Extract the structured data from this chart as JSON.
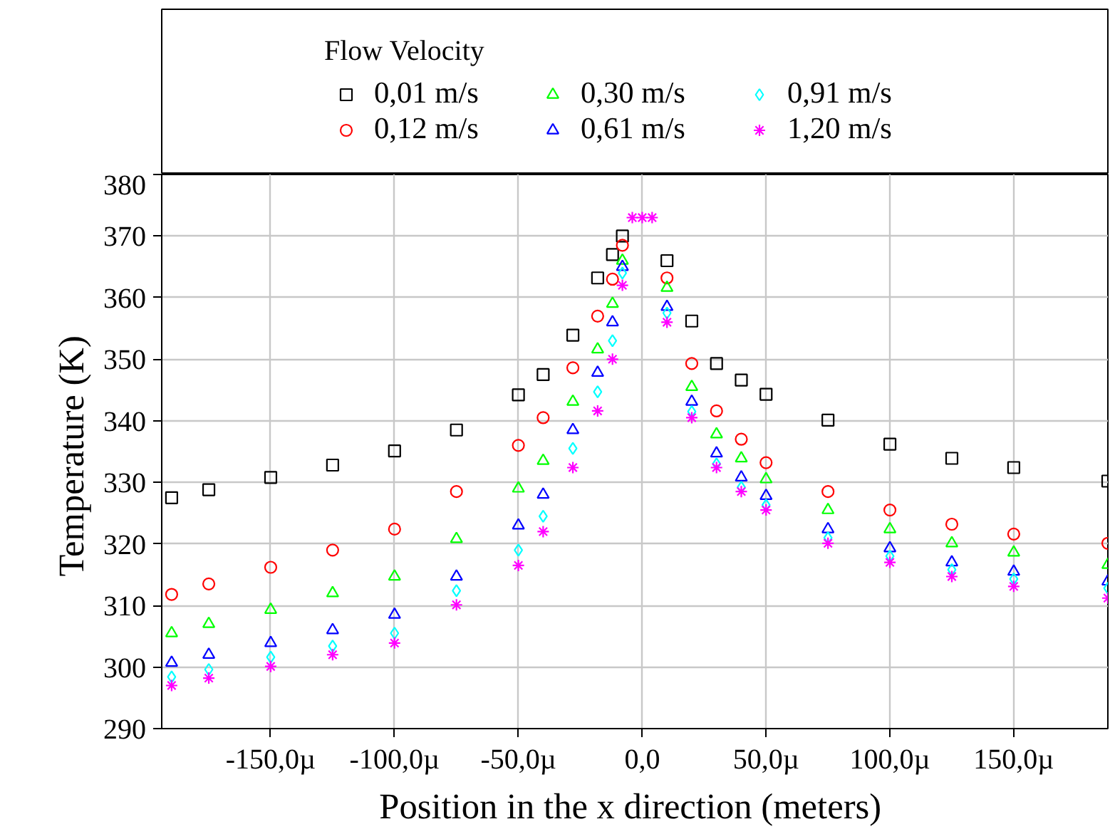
{
  "chart_data": {
    "type": "scatter",
    "xlabel": "Position in the x direction  (meters)",
    "ylabel": "Temperature  (K)",
    "legend_title": "Flow Velocity",
    "legend": "top",
    "grid": true,
    "x": [
      -190,
      -175,
      -150,
      -125,
      -100,
      -75,
      -50,
      -40,
      -28,
      -18,
      -12,
      -8,
      -4,
      0,
      4,
      10,
      20,
      30,
      40,
      50,
      75,
      100,
      125,
      150,
      188
    ],
    "series": [
      {
        "name": "0,01 m/s",
        "color": "#000000",
        "marker": "square",
        "values": [
          327.5,
          328.8,
          330.8,
          332.8,
          335.1,
          338.5,
          344.2,
          347.5,
          353.9,
          363.2,
          367,
          370,
          null,
          null,
          null,
          366,
          356.2,
          349.3,
          346.6,
          344.3,
          340.1,
          336.2,
          333.9,
          332.4,
          330.2
        ]
      },
      {
        "name": "0,12 m/s",
        "color": "#ff0000",
        "marker": "circle",
        "values": [
          311.8,
          313.5,
          316.2,
          319,
          322.4,
          328.5,
          336,
          340.5,
          348.6,
          357,
          363,
          368.5,
          null,
          null,
          null,
          363.2,
          349.3,
          341.6,
          337,
          333.2,
          328.5,
          325.5,
          323.2,
          321.6,
          320.1
        ]
      },
      {
        "name": "0,30 m/s",
        "color": "#00ff00",
        "marker": "triangle",
        "values": [
          305.5,
          307,
          309.3,
          312,
          314.7,
          320.8,
          329,
          333.5,
          343.1,
          351.6,
          359,
          366,
          null,
          null,
          null,
          361.6,
          345.5,
          337.8,
          333.9,
          330.5,
          325.5,
          322.4,
          320.1,
          318.6,
          316.6
        ]
      },
      {
        "name": "0,61 m/s",
        "color": "#0000ff",
        "marker": "triangle",
        "values": [
          300.7,
          302,
          303.9,
          306,
          308.5,
          314.7,
          323,
          328,
          338.5,
          347.8,
          356,
          365,
          null,
          null,
          null,
          358.5,
          343.1,
          334.7,
          330.8,
          327.8,
          322.4,
          319.3,
          317,
          315.5,
          313.9
        ]
      },
      {
        "name": "0,91 m/s",
        "color": "#00ffff",
        "marker": "diamond",
        "values": [
          298.4,
          299.6,
          301.6,
          303.4,
          305.5,
          312.4,
          319,
          324.5,
          335.5,
          344.7,
          353,
          364,
          null,
          null,
          null,
          357.5,
          341.5,
          333,
          329.2,
          326.3,
          321,
          318,
          315.8,
          314.3,
          312.8
        ]
      },
      {
        "name": "1,20 m/s",
        "color": "#ff00ff",
        "marker": "cross",
        "values": [
          297,
          298.2,
          300.1,
          302,
          303.9,
          310.1,
          316.5,
          322,
          332.4,
          341.6,
          350,
          362,
          373,
          373,
          373,
          356,
          340.5,
          332.4,
          328.5,
          325.5,
          320.1,
          317,
          314.7,
          313.1,
          311.2
        ]
      }
    ],
    "xlim": [
      -194,
      188
    ],
    "xticks": [
      {
        "value": -150,
        "label": "-150,0µ"
      },
      {
        "value": -100,
        "label": "-100,0µ"
      },
      {
        "value": -50,
        "label": "-50,0µ"
      },
      {
        "value": 0,
        "label": "0,0"
      },
      {
        "value": 50,
        "label": "50,0µ"
      },
      {
        "value": 100,
        "label": "100,0µ"
      },
      {
        "value": 150,
        "label": "150,0µ"
      }
    ],
    "ylim": [
      290,
      380
    ],
    "yticks": [
      290,
      300,
      310,
      320,
      330,
      340,
      350,
      360,
      370,
      380
    ]
  }
}
